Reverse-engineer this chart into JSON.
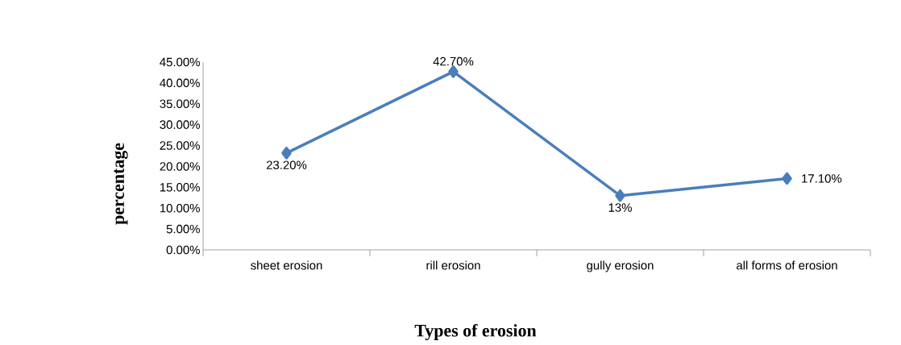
{
  "chart_data": {
    "type": "line",
    "xlabel": "Types of erosion",
    "ylabel": "percentage",
    "categories": [
      "sheet erosion",
      "rill erosion",
      "gully erosion",
      "all forms of erosion"
    ],
    "series": [
      {
        "color": "#4a7ebb",
        "values": [
          23.2,
          42.7,
          13,
          17.1
        ],
        "value_labels": [
          "23.20%",
          "42.70%",
          "13%",
          "17.10%"
        ]
      }
    ],
    "ylim": [
      0,
      45
    ],
    "yticks": [
      {
        "value": 0,
        "label": "0.00%"
      },
      {
        "value": 5,
        "label": "5.00%"
      },
      {
        "value": 10,
        "label": "10.00%"
      },
      {
        "value": 15,
        "label": "15.00%"
      },
      {
        "value": 20,
        "label": "20.00%"
      },
      {
        "value": 25,
        "label": "25.00%"
      },
      {
        "value": 30,
        "label": "30.00%"
      },
      {
        "value": 35,
        "label": "35.00%"
      },
      {
        "value": 40,
        "label": "40.00%"
      },
      {
        "value": 45,
        "label": "45.00%"
      }
    ],
    "marker": "diamond",
    "line_style": "solid",
    "grid": false
  }
}
